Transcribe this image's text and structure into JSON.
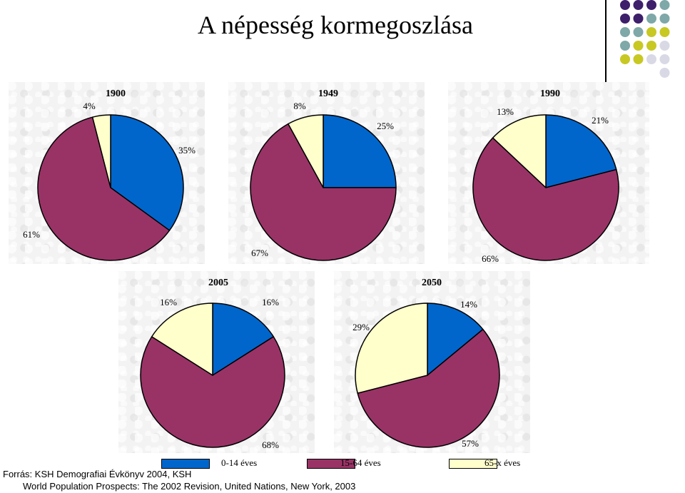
{
  "title": "A népesség kormegoszlása",
  "colors": {
    "age_0_14": "#0066cc",
    "age_15_64": "#993366",
    "age_65_plus": "#ffffcc",
    "dot_dark": "#3d1f6b",
    "dot_teal": "#7fa8a8",
    "dot_yellow": "#c8c822",
    "dot_light": "#d9d9e6"
  },
  "legend": [
    "0-14 éves",
    "15-64 éves",
    "65-x éves"
  ],
  "chart_data": [
    {
      "type": "pie",
      "title": "1900",
      "categories": [
        "0-14 éves",
        "15-64 éves",
        "65-x éves"
      ],
      "values": [
        35,
        61,
        4
      ],
      "data_labels": [
        "35%",
        "61%",
        "4%"
      ]
    },
    {
      "type": "pie",
      "title": "1949",
      "categories": [
        "0-14 éves",
        "15-64 éves",
        "65-x éves"
      ],
      "values": [
        25,
        67,
        8
      ],
      "data_labels": [
        "25%",
        "67%",
        "8%"
      ]
    },
    {
      "type": "pie",
      "title": "1990",
      "categories": [
        "0-14 éves",
        "15-64 éves",
        "65-x éves"
      ],
      "values": [
        21,
        66,
        13
      ],
      "data_labels": [
        "21%",
        "66%",
        "13%"
      ]
    },
    {
      "type": "pie",
      "title": "2005",
      "categories": [
        "0-14 éves",
        "15-64 éves",
        "65-x éves"
      ],
      "values": [
        16,
        68,
        16
      ],
      "data_labels": [
        "16%",
        "68%",
        "16%"
      ]
    },
    {
      "type": "pie",
      "title": "2050",
      "categories": [
        "0-14 éves",
        "15-64 éves",
        "65-x éves"
      ],
      "values": [
        14,
        57,
        29
      ],
      "data_labels": [
        "14%",
        "57%",
        "29%"
      ]
    }
  ],
  "sources": [
    "Forrás: KSH Demografiai Évkönyv 2004, KSH",
    "World Population Prospects: The 2002 Revision, United Nations, New York, 2003"
  ]
}
